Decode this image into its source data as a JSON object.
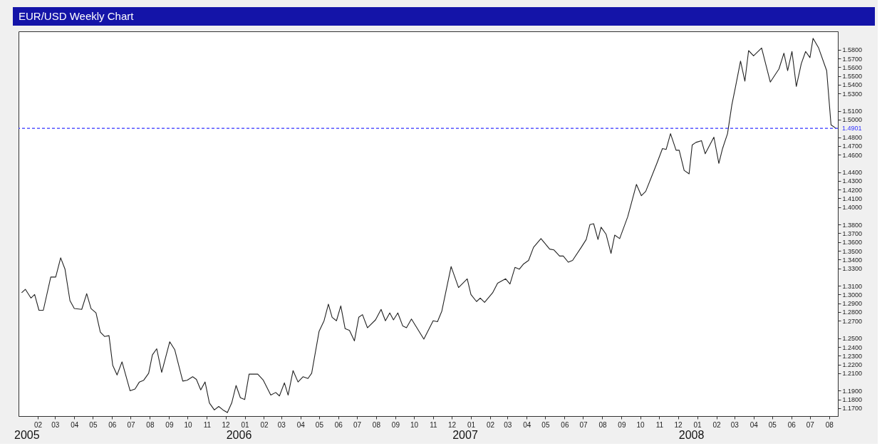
{
  "chart_data": {
    "type": "line",
    "title": "EUR/USD Weekly Chart",
    "x": [
      "2005-01-06",
      "2005-01-12",
      "2005-01-21",
      "2005-01-27",
      "2005-02-03",
      "2005-02-10",
      "2005-02-22",
      "2005-03-02",
      "2005-03-10",
      "2005-03-17",
      "2005-03-25",
      "2005-04-01",
      "2005-04-13",
      "2005-04-21",
      "2005-04-28",
      "2005-05-06",
      "2005-05-13",
      "2005-05-20",
      "2005-05-27",
      "2005-06-02",
      "2005-06-09",
      "2005-06-17",
      "2005-06-30",
      "2005-07-08",
      "2005-07-15",
      "2005-07-22",
      "2005-07-30",
      "2005-08-05",
      "2005-08-12",
      "2005-08-20",
      "2005-09-02",
      "2005-09-10",
      "2005-09-23",
      "2005-09-30",
      "2005-10-09",
      "2005-10-15",
      "2005-10-22",
      "2005-10-29",
      "2005-11-05",
      "2005-11-13",
      "2005-11-20",
      "2005-11-27",
      "2005-12-04",
      "2005-12-11",
      "2005-12-18",
      "2005-12-25",
      "2006-01-01",
      "2006-01-08",
      "2006-01-22",
      "2006-01-31",
      "2006-02-12",
      "2006-02-20",
      "2006-02-26",
      "2006-03-06",
      "2006-03-12",
      "2006-03-20",
      "2006-03-28",
      "2006-04-05",
      "2006-04-13",
      "2006-04-19",
      "2006-05-01",
      "2006-05-09",
      "2006-05-16",
      "2006-05-22",
      "2006-05-29",
      "2006-06-05",
      "2006-06-12",
      "2006-06-19",
      "2006-06-27",
      "2006-07-04",
      "2006-07-10",
      "2006-07-18",
      "2006-07-31",
      "2006-08-09",
      "2006-08-16",
      "2006-08-23",
      "2006-08-29",
      "2006-09-05",
      "2006-09-13",
      "2006-09-19",
      "2006-09-27",
      "2006-10-17",
      "2006-11-01",
      "2006-11-08",
      "2006-11-15",
      "2006-11-30",
      "2006-12-12",
      "2006-12-26",
      "2007-01-01",
      "2007-01-10",
      "2007-01-16",
      "2007-01-23",
      "2007-02-05",
      "2007-02-13",
      "2007-02-26",
      "2007-03-05",
      "2007-03-13",
      "2007-03-20",
      "2007-03-27",
      "2007-04-04",
      "2007-04-12",
      "2007-04-24",
      "2007-05-08",
      "2007-05-15",
      "2007-05-24",
      "2007-05-30",
      "2007-06-07",
      "2007-06-14",
      "2007-06-28",
      "2007-07-06",
      "2007-07-12",
      "2007-07-18",
      "2007-07-25",
      "2007-07-30",
      "2007-08-07",
      "2007-08-15",
      "2007-08-21",
      "2007-08-29",
      "2007-09-11",
      "2007-09-25",
      "2007-10-03",
      "2007-10-10",
      "2007-10-28",
      "2007-11-06",
      "2007-11-12",
      "2007-11-19",
      "2007-11-28",
      "2007-12-03",
      "2007-12-11",
      "2007-12-19",
      "2007-12-24",
      "2007-12-30",
      "2008-01-08",
      "2008-01-14",
      "2008-01-28",
      "2008-02-05",
      "2008-02-11",
      "2008-02-19",
      "2008-02-26",
      "2008-03-03",
      "2008-03-11",
      "2008-03-18",
      "2008-03-24",
      "2008-04-01",
      "2008-04-14",
      "2008-04-28",
      "2008-05-12",
      "2008-05-20",
      "2008-05-26",
      "2008-06-02",
      "2008-06-09",
      "2008-06-17",
      "2008-06-24",
      "2008-07-01",
      "2008-07-06",
      "2008-07-15",
      "2008-07-28",
      "2008-08-04",
      "2008-08-12"
    ],
    "series": [
      {
        "color": "#222222",
        "values": [
          1.302,
          1.306,
          1.296,
          1.3,
          1.282,
          1.282,
          1.32,
          1.32,
          1.342,
          1.329,
          1.293,
          1.284,
          1.283,
          1.301,
          1.284,
          1.279,
          1.257,
          1.252,
          1.253,
          1.219,
          1.208,
          1.223,
          1.19,
          1.192,
          1.2,
          1.202,
          1.21,
          1.231,
          1.238,
          1.211,
          1.246,
          1.237,
          1.201,
          1.202,
          1.206,
          1.203,
          1.191,
          1.2,
          1.176,
          1.168,
          1.172,
          1.168,
          1.165,
          1.176,
          1.196,
          1.182,
          1.18,
          1.209,
          1.209,
          1.202,
          1.185,
          1.188,
          1.184,
          1.199,
          1.185,
          1.213,
          1.2,
          1.206,
          1.204,
          1.21,
          1.258,
          1.27,
          1.289,
          1.274,
          1.27,
          1.287,
          1.261,
          1.259,
          1.247,
          1.274,
          1.277,
          1.262,
          1.271,
          1.283,
          1.27,
          1.279,
          1.271,
          1.279,
          1.264,
          1.262,
          1.272,
          1.249,
          1.27,
          1.269,
          1.281,
          1.332,
          1.308,
          1.318,
          1.3,
          1.292,
          1.296,
          1.291,
          1.302,
          1.313,
          1.318,
          1.312,
          1.331,
          1.329,
          1.335,
          1.339,
          1.354,
          1.364,
          1.352,
          1.351,
          1.344,
          1.344,
          1.337,
          1.339,
          1.354,
          1.363,
          1.38,
          1.381,
          1.363,
          1.377,
          1.369,
          1.347,
          1.368,
          1.364,
          1.389,
          1.426,
          1.413,
          1.418,
          1.45,
          1.467,
          1.466,
          1.484,
          1.465,
          1.465,
          1.442,
          1.438,
          1.471,
          1.474,
          1.476,
          1.461,
          1.48,
          1.45,
          1.467,
          1.484,
          1.517,
          1.538,
          1.567,
          1.544,
          1.579,
          1.573,
          1.582,
          1.543,
          1.558,
          1.576,
          1.556,
          1.578,
          1.538,
          1.564,
          1.578,
          1.571,
          1.593,
          1.582,
          1.556,
          1.494,
          1.4901
        ]
      }
    ],
    "xlim": [
      "2005-01-01",
      "2008-08-15"
    ],
    "ylim": [
      1.161,
      1.601
    ],
    "xticks": [
      {
        "value": "2005-02",
        "label": "02"
      },
      {
        "value": "2005-03",
        "label": "03"
      },
      {
        "value": "2005-04",
        "label": "04"
      },
      {
        "value": "2005-05",
        "label": "05"
      },
      {
        "value": "2005-06",
        "label": "06"
      },
      {
        "value": "2005-07",
        "label": "07"
      },
      {
        "value": "2005-08",
        "label": "08"
      },
      {
        "value": "2005-09",
        "label": "09"
      },
      {
        "value": "2005-10",
        "label": "10"
      },
      {
        "value": "2005-11",
        "label": "11"
      },
      {
        "value": "2005-12",
        "label": "12"
      },
      {
        "value": "2006-01",
        "label": "01"
      },
      {
        "value": "2006-02",
        "label": "02"
      },
      {
        "value": "2006-03",
        "label": "03"
      },
      {
        "value": "2006-04",
        "label": "04"
      },
      {
        "value": "2006-05",
        "label": "05"
      },
      {
        "value": "2006-06",
        "label": "06"
      },
      {
        "value": "2006-07",
        "label": "07"
      },
      {
        "value": "2006-08",
        "label": "08"
      },
      {
        "value": "2006-09",
        "label": "09"
      },
      {
        "value": "2006-10",
        "label": "10"
      },
      {
        "value": "2006-11",
        "label": "11"
      },
      {
        "value": "2006-12",
        "label": "12"
      },
      {
        "value": "2007-01",
        "label": "01"
      },
      {
        "value": "2007-02",
        "label": "02"
      },
      {
        "value": "2007-03",
        "label": "03"
      },
      {
        "value": "2007-04",
        "label": "04"
      },
      {
        "value": "2007-05",
        "label": "05"
      },
      {
        "value": "2007-06",
        "label": "06"
      },
      {
        "value": "2007-07",
        "label": "07"
      },
      {
        "value": "2007-08",
        "label": "08"
      },
      {
        "value": "2007-09",
        "label": "09"
      },
      {
        "value": "2007-10",
        "label": "10"
      },
      {
        "value": "2007-11",
        "label": "11"
      },
      {
        "value": "2007-12",
        "label": "12"
      },
      {
        "value": "2008-01",
        "label": "01"
      },
      {
        "value": "2008-02",
        "label": "02"
      },
      {
        "value": "2008-03",
        "label": "03"
      },
      {
        "value": "2008-04",
        "label": "04"
      },
      {
        "value": "2008-05",
        "label": "05"
      },
      {
        "value": "2008-06",
        "label": "06"
      },
      {
        "value": "2008-07",
        "label": "07"
      },
      {
        "value": "2008-08",
        "label": "08"
      }
    ],
    "annotations": [
      "2005",
      "2006",
      "2007",
      "2008"
    ],
    "yticks": [
      {
        "value": 1.58,
        "label": "1.5800"
      },
      {
        "value": 1.57,
        "label": "1.5700"
      },
      {
        "value": 1.56,
        "label": "1.5600"
      },
      {
        "value": 1.55,
        "label": "1.5500"
      },
      {
        "value": 1.54,
        "label": "1.5400"
      },
      {
        "value": 1.53,
        "label": "1.5300"
      },
      {
        "value": 1.51,
        "label": "1.5100"
      },
      {
        "value": 1.5,
        "label": "1.5000"
      },
      {
        "value": 1.48,
        "label": "1.4800"
      },
      {
        "value": 1.47,
        "label": "1.4700"
      },
      {
        "value": 1.46,
        "label": "1.4600"
      },
      {
        "value": 1.44,
        "label": "1.4400"
      },
      {
        "value": 1.43,
        "label": "1.4300"
      },
      {
        "value": 1.42,
        "label": "1.4200"
      },
      {
        "value": 1.41,
        "label": "1.4100"
      },
      {
        "value": 1.4,
        "label": "1.4000"
      },
      {
        "value": 1.38,
        "label": "1.3800"
      },
      {
        "value": 1.37,
        "label": "1.3700"
      },
      {
        "value": 1.36,
        "label": "1.3600"
      },
      {
        "value": 1.35,
        "label": "1.3500"
      },
      {
        "value": 1.34,
        "label": "1.3400"
      },
      {
        "value": 1.33,
        "label": "1.3300"
      },
      {
        "value": 1.31,
        "label": "1.3100"
      },
      {
        "value": 1.3,
        "label": "1.3000"
      },
      {
        "value": 1.29,
        "label": "1.2900"
      },
      {
        "value": 1.28,
        "label": "1.2800"
      },
      {
        "value": 1.27,
        "label": "1.2700"
      },
      {
        "value": 1.25,
        "label": "1.2500"
      },
      {
        "value": 1.24,
        "label": "1.2400"
      },
      {
        "value": 1.23,
        "label": "1.2300"
      },
      {
        "value": 1.22,
        "label": "1.2200"
      },
      {
        "value": 1.21,
        "label": "1.2100"
      },
      {
        "value": 1.19,
        "label": "1.1900"
      },
      {
        "value": 1.18,
        "label": "1.1800"
      },
      {
        "value": 1.17,
        "label": "1.1700"
      }
    ],
    "ref_lines": [
      {
        "axis": "y",
        "value": 1.4901,
        "label": "1.4901",
        "color": "#3333ff",
        "line_style": "dashed"
      }
    ],
    "grid": false
  }
}
